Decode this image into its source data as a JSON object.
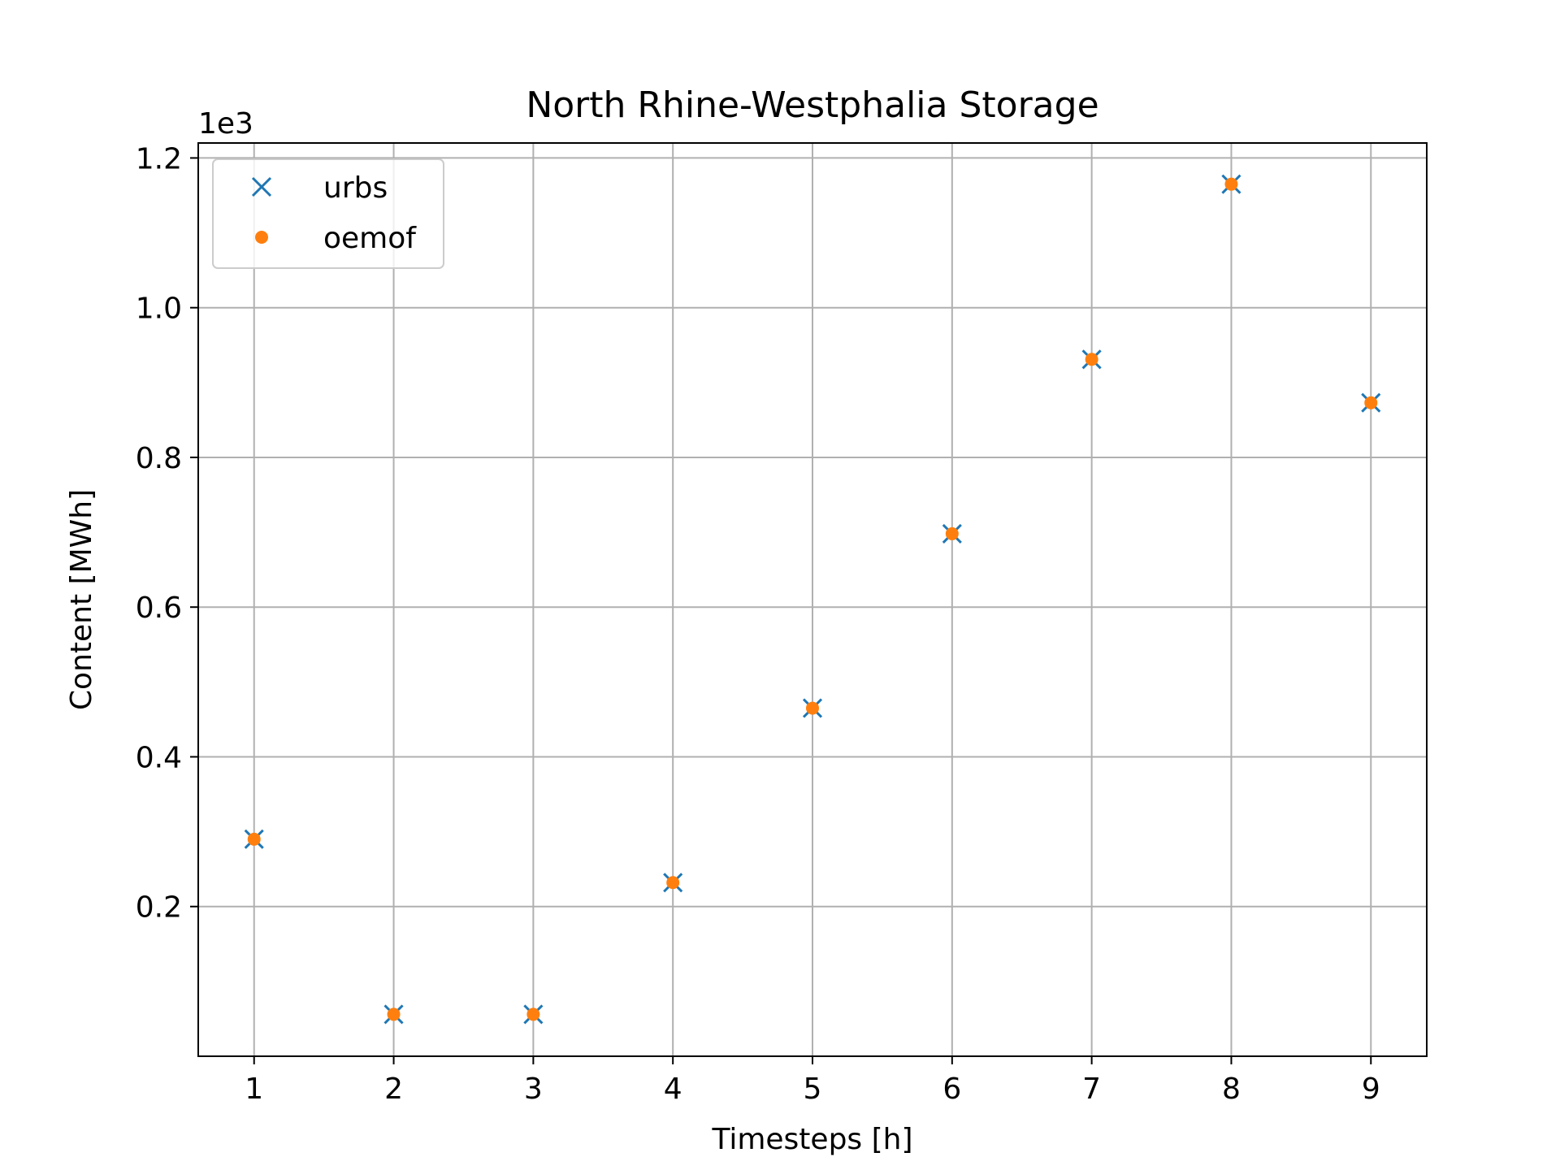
{
  "chart_data": {
    "type": "scatter",
    "title": "North Rhine-Westphalia Storage",
    "xlabel": "Timesteps [h]",
    "ylabel": "Content [MWh]",
    "y_offset_text": "1e3",
    "x": [
      1,
      2,
      3,
      4,
      5,
      6,
      7,
      8,
      9
    ],
    "xlim": [
      0.6,
      9.4
    ],
    "ylim": [
      0.0,
      1.22
    ],
    "x_ticks": [
      1,
      2,
      3,
      4,
      5,
      6,
      7,
      8,
      9
    ],
    "y_ticks": [
      0.2,
      0.4,
      0.6,
      0.8,
      1.0,
      1.2
    ],
    "y_tick_labels": [
      "0.2",
      "0.4",
      "0.6",
      "0.8",
      "1.0",
      "1.2"
    ],
    "grid": true,
    "legend_position": "top-left",
    "series": [
      {
        "name": "urbs",
        "marker": "x",
        "color": "#1f77b4",
        "values": [
          0.29,
          0.056,
          0.056,
          0.232,
          0.465,
          0.698,
          0.931,
          1.165,
          0.873
        ]
      },
      {
        "name": "oemof",
        "marker": "dot",
        "color": "#ff7f0e",
        "values": [
          0.29,
          0.056,
          0.056,
          0.232,
          0.465,
          0.698,
          0.931,
          1.165,
          0.873
        ]
      }
    ]
  }
}
